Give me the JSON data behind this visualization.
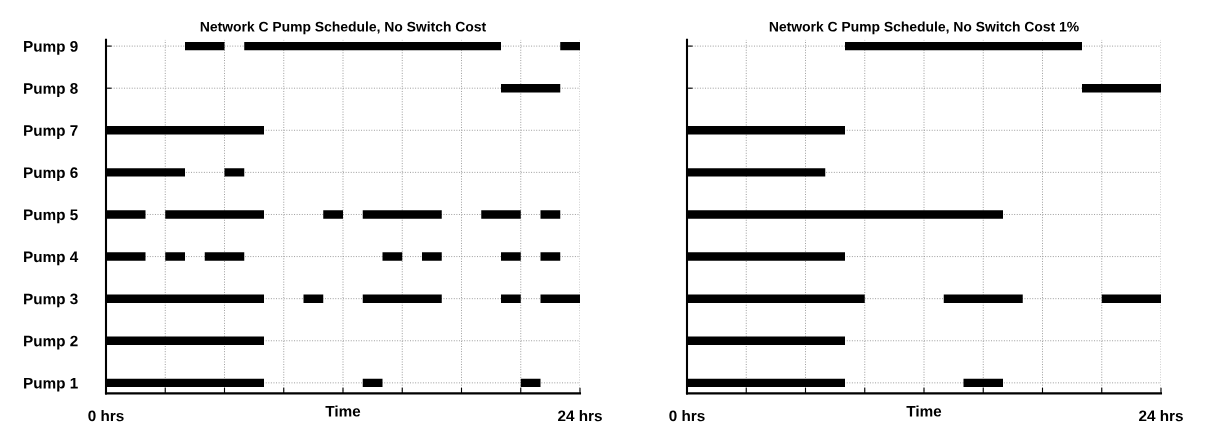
{
  "chart_data": [
    {
      "type": "bar",
      "orientation": "horizontal",
      "title": "Network C Pump Schedule, No Switch Cost",
      "xlabel": "Time",
      "categories": [
        "Pump 9",
        "Pump 8",
        "Pump 7",
        "Pump 6",
        "Pump 5",
        "Pump 4",
        "Pump 3",
        "Pump 2",
        "Pump 1"
      ],
      "xlim": [
        0,
        24
      ],
      "xticks": [
        {
          "value": 0,
          "label": "0 hrs"
        },
        {
          "value": 3,
          "label": null
        },
        {
          "value": 6,
          "label": null
        },
        {
          "value": 9,
          "label": null
        },
        {
          "value": 12,
          "label": null
        },
        {
          "value": 15,
          "label": null
        },
        {
          "value": 18,
          "label": null
        },
        {
          "value": 21,
          "label": null
        },
        {
          "value": 24,
          "label": "24 hrs"
        }
      ],
      "grid": true,
      "line_style": "dotted",
      "series": [
        {
          "color": "#000000",
          "base": [
            4,
            20,
            0,
            0,
            0,
            0,
            0,
            0,
            0
          ],
          "values": [
            2,
            3,
            8,
            4,
            2,
            2,
            8,
            8,
            8
          ]
        },
        {
          "color": "#000000",
          "base": [
            7,
            null,
            null,
            6,
            3,
            3,
            10,
            null,
            13
          ],
          "values": [
            13,
            null,
            null,
            1,
            5,
            1,
            1,
            null,
            1
          ]
        },
        {
          "color": "#000000",
          "base": [
            23,
            null,
            null,
            null,
            11,
            5,
            13,
            null,
            21
          ],
          "values": [
            1,
            null,
            null,
            null,
            1,
            2,
            4,
            null,
            1
          ]
        },
        {
          "color": "#000000",
          "base": [
            null,
            null,
            null,
            null,
            13,
            14,
            20,
            null,
            null
          ],
          "values": [
            null,
            null,
            null,
            null,
            4,
            1,
            1,
            null,
            null
          ]
        },
        {
          "color": "#000000",
          "base": [
            null,
            null,
            null,
            null,
            19,
            16,
            22,
            null,
            null
          ],
          "values": [
            null,
            null,
            null,
            null,
            2,
            1,
            2,
            null,
            null
          ]
        },
        {
          "color": "#000000",
          "base": [
            null,
            null,
            null,
            null,
            22,
            20,
            null,
            null,
            null
          ],
          "values": [
            null,
            null,
            null,
            null,
            1,
            1,
            null,
            null,
            null
          ]
        },
        {
          "color": "#000000",
          "base": [
            null,
            null,
            null,
            null,
            null,
            22,
            null,
            null,
            null
          ],
          "values": [
            null,
            null,
            null,
            null,
            null,
            1,
            null,
            null,
            null
          ]
        }
      ]
    },
    {
      "type": "bar",
      "orientation": "horizontal",
      "title": "Network C Pump Schedule, No Switch Cost 1%",
      "xlabel": "Time",
      "categories": [
        null,
        null,
        null,
        null,
        null,
        null,
        null,
        null,
        null
      ],
      "xlim": [
        0,
        24
      ],
      "xticks": [
        {
          "value": 0,
          "label": "0 hrs"
        },
        {
          "value": 3,
          "label": null
        },
        {
          "value": 6,
          "label": null
        },
        {
          "value": 9,
          "label": null
        },
        {
          "value": 12,
          "label": null
        },
        {
          "value": 15,
          "label": null
        },
        {
          "value": 18,
          "label": null
        },
        {
          "value": 21,
          "label": null
        },
        {
          "value": 24,
          "label": "24 hrs"
        }
      ],
      "grid": true,
      "line_style": "dotted",
      "series": [
        {
          "color": "#000000",
          "base": [
            8,
            20,
            0,
            0,
            0,
            0,
            0,
            0,
            0
          ],
          "values": [
            12,
            4,
            8,
            7,
            16,
            8,
            9,
            8,
            8
          ]
        },
        {
          "color": "#000000",
          "base": [
            null,
            null,
            null,
            null,
            null,
            null,
            13,
            null,
            14
          ],
          "values": [
            null,
            null,
            null,
            null,
            null,
            null,
            4,
            null,
            2
          ]
        },
        {
          "color": "#000000",
          "base": [
            null,
            null,
            null,
            null,
            null,
            null,
            21,
            null,
            null
          ],
          "values": [
            null,
            null,
            null,
            null,
            null,
            null,
            3,
            null,
            null
          ]
        }
      ]
    }
  ]
}
